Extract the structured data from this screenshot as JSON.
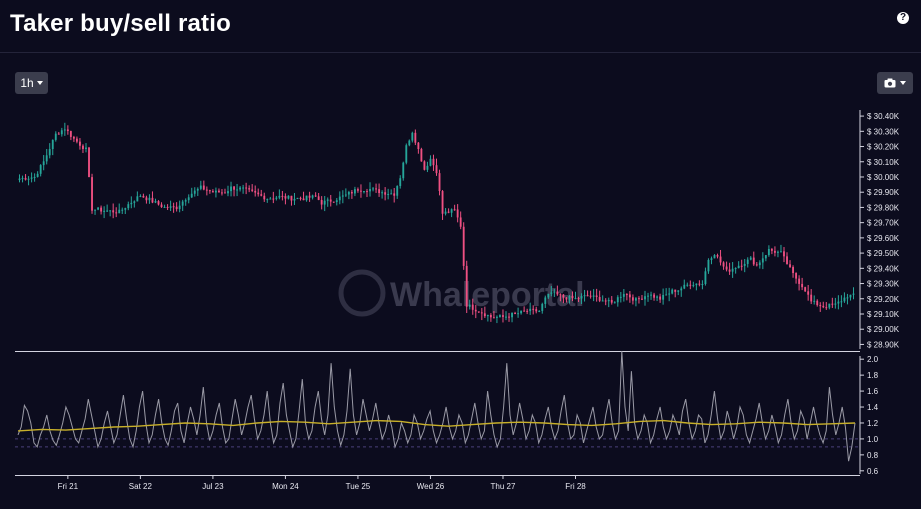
{
  "header": {
    "title": "Taker buy/sell ratio",
    "help_icon": "question-icon"
  },
  "toolbar": {
    "timeframe_label": "1h",
    "camera_icon": "camera-icon"
  },
  "watermark": "Whaleportal",
  "colors": {
    "up": "#26a69a",
    "down": "#ef5082",
    "ratio_line": "#9a9aa6",
    "ma_line": "#c8b02a",
    "ref_line": "#4a3f7a"
  },
  "chart_data": [
    {
      "type": "candlestick",
      "title": "",
      "ylabel": "",
      "y_tick_labels": [
        "$ 30.40K",
        "$ 30.30K",
        "$ 30.20K",
        "$ 30.10K",
        "$ 30.00K",
        "$ 29.90K",
        "$ 29.80K",
        "$ 29.70K",
        "$ 29.60K",
        "$ 29.50K",
        "$ 29.40K",
        "$ 29.30K",
        "$ 29.20K",
        "$ 29.10K",
        "$ 29.00K",
        "$ 28.90K"
      ],
      "y_tick_values": [
        30400,
        30300,
        30200,
        30100,
        30000,
        29900,
        29800,
        29700,
        29600,
        29500,
        29400,
        29300,
        29200,
        29100,
        29000,
        28900
      ],
      "ylim": [
        28870,
        30440
      ],
      "x_tick_labels": [
        "Fri 21",
        "Sat 22",
        "Jul 23",
        "Mon 24",
        "Tue 25",
        "Wed 26",
        "Thu 27",
        "Fri 28"
      ],
      "close_anchors": [
        [
          0,
          29990
        ],
        [
          5,
          30000
        ],
        [
          8,
          30100
        ],
        [
          12,
          30280
        ],
        [
          15,
          30320
        ],
        [
          18,
          30250
        ],
        [
          22,
          30180
        ],
        [
          24,
          29790
        ],
        [
          28,
          29780
        ],
        [
          33,
          29770
        ],
        [
          36,
          29820
        ],
        [
          40,
          29880
        ],
        [
          44,
          29840
        ],
        [
          48,
          29800
        ],
        [
          52,
          29800
        ],
        [
          56,
          29880
        ],
        [
          60,
          29930
        ],
        [
          64,
          29900
        ],
        [
          68,
          29900
        ],
        [
          70,
          29930
        ],
        [
          74,
          29920
        ],
        [
          78,
          29890
        ],
        [
          82,
          29860
        ],
        [
          86,
          29870
        ],
        [
          90,
          29860
        ],
        [
          94,
          29860
        ],
        [
          98,
          29870
        ],
        [
          100,
          29830
        ],
        [
          104,
          29850
        ],
        [
          108,
          29880
        ],
        [
          112,
          29920
        ],
        [
          116,
          29920
        ],
        [
          120,
          29900
        ],
        [
          124,
          29890
        ],
        [
          126,
          30000
        ],
        [
          128,
          30200
        ],
        [
          130,
          30300
        ],
        [
          132,
          30180
        ],
        [
          134,
          30050
        ],
        [
          136,
          30120
        ],
        [
          138,
          30040
        ],
        [
          140,
          29760
        ],
        [
          144,
          29780
        ],
        [
          146,
          29680
        ],
        [
          148,
          29160
        ],
        [
          152,
          29120
        ],
        [
          156,
          29080
        ],
        [
          160,
          29080
        ],
        [
          164,
          29100
        ],
        [
          168,
          29120
        ],
        [
          172,
          29120
        ],
        [
          174,
          29200
        ],
        [
          176,
          29240
        ],
        [
          180,
          29210
        ],
        [
          184,
          29200
        ],
        [
          188,
          29220
        ],
        [
          192,
          29200
        ],
        [
          196,
          29170
        ],
        [
          200,
          29240
        ],
        [
          204,
          29190
        ],
        [
          208,
          29230
        ],
        [
          212,
          29200
        ],
        [
          216,
          29250
        ],
        [
          218,
          29260
        ],
        [
          222,
          29300
        ],
        [
          226,
          29300
        ],
        [
          228,
          29460
        ],
        [
          230,
          29500
        ],
        [
          232,
          29440
        ],
        [
          234,
          29380
        ],
        [
          238,
          29420
        ],
        [
          242,
          29460
        ],
        [
          244,
          29420
        ],
        [
          248,
          29520
        ],
        [
          252,
          29500
        ],
        [
          256,
          29360
        ],
        [
          260,
          29260
        ],
        [
          262,
          29180
        ],
        [
          266,
          29150
        ],
        [
          270,
          29160
        ],
        [
          274,
          29220
        ],
        [
          276,
          29220
        ]
      ]
    },
    {
      "type": "line",
      "title": "",
      "ylabel": "",
      "y_tick_labels": [
        "2.0",
        "1.8",
        "1.6",
        "1.4",
        "1.2",
        "1.0",
        "0.8",
        "0.6"
      ],
      "y_tick_values": [
        2.0,
        1.8,
        1.6,
        1.4,
        1.2,
        1.0,
        0.8,
        0.6
      ],
      "ylim": [
        0.56,
        2.04
      ],
      "reference_lines": [
        1.0,
        0.9
      ],
      "series": [
        {
          "key": "ratio",
          "values": [
            1.05,
            1.15,
            1.42,
            1.35,
            1.2,
            0.95,
            0.9,
            1.05,
            1.15,
            1.3,
            1.1,
            0.98,
            0.92,
            1.05,
            1.2,
            1.4,
            1.3,
            1.15,
            1.0,
            0.95,
            1.1,
            1.25,
            1.5,
            1.3,
            1.1,
            0.9,
            1.0,
            1.2,
            1.35,
            1.15,
            0.95,
            1.05,
            1.3,
            1.55,
            1.25,
            1.0,
            0.9,
            1.1,
            1.4,
            1.6,
            1.2,
            0.95,
            1.05,
            1.3,
            1.5,
            1.2,
            1.0,
            0.92,
            1.1,
            1.35,
            1.45,
            1.1,
            0.95,
            1.2,
            1.4,
            1.25,
            1.05,
            1.3,
            1.65,
            1.2,
            0.98,
            1.1,
            1.3,
            1.45,
            1.15,
            0.95,
            1.0,
            1.25,
            1.5,
            1.3,
            1.05,
            1.2,
            1.4,
            1.55,
            1.25,
            1.0,
            1.1,
            1.3,
            1.6,
            1.2,
            0.95,
            1.05,
            1.45,
            1.7,
            1.3,
            1.1,
            0.9,
            1.0,
            1.35,
            1.75,
            1.2,
            1.0,
            1.1,
            1.4,
            1.6,
            1.25,
            1.05,
            1.3,
            1.95,
            1.4,
            1.1,
            0.92,
            1.05,
            1.35,
            1.88,
            1.3,
            1.05,
            1.2,
            1.5,
            1.3,
            1.1,
            1.25,
            1.45,
            1.2,
            1.0,
            1.1,
            1.3,
            1.15,
            0.9,
            1.0,
            1.2,
            1.1,
            0.95,
            1.05,
            1.3,
            1.2,
            1.0,
            1.1,
            1.25,
            1.35,
            1.1,
            0.95,
            1.05,
            1.2,
            1.4,
            1.15,
            1.0,
            1.1,
            1.3,
            1.2,
            0.95,
            1.05,
            1.25,
            1.45,
            1.2,
            1.0,
            1.1,
            1.6,
            1.3,
            1.05,
            0.9,
            1.0,
            1.4,
            1.95,
            1.3,
            1.05,
            1.2,
            1.45,
            1.25,
            1.0,
            1.1,
            1.3,
            1.2,
            0.95,
            1.05,
            1.25,
            1.4,
            1.15,
            1.0,
            1.1,
            1.35,
            1.55,
            1.2,
            1.0,
            1.05,
            1.3,
            1.2,
            0.95,
            1.1,
            1.25,
            1.4,
            1.15,
            1.0,
            1.05,
            1.3,
            1.5,
            1.2,
            1.0,
            1.1,
            2.1,
            1.4,
            1.1,
            1.85,
            1.2,
            1.0,
            1.1,
            1.3,
            1.2,
            0.95,
            1.05,
            1.25,
            1.4,
            1.15,
            1.0,
            1.1,
            1.3,
            1.2,
            1.05,
            1.35,
            1.5,
            1.2,
            1.0,
            1.1,
            1.3,
            1.25,
            0.95,
            1.05,
            1.3,
            1.6,
            1.25,
            1.0,
            1.1,
            1.35,
            1.2,
            1.0,
            1.15,
            1.4,
            1.3,
            1.05,
            0.95,
            1.1,
            1.25,
            1.45,
            1.2,
            1.0,
            1.1,
            1.3,
            1.15,
            0.95,
            1.05,
            1.3,
            1.5,
            1.2,
            1.0,
            1.1,
            1.35,
            1.25,
            1.0,
            1.2,
            1.4,
            1.2,
            1.05,
            0.95,
            1.1,
            1.65,
            1.3,
            1.05,
            1.2,
            1.4,
            1.15,
            0.72,
            0.9,
            1.2
          ]
        },
        {
          "key": "moving_average",
          "values": [
            1.1,
            1.12,
            1.11,
            1.13,
            1.15,
            1.16,
            1.18,
            1.2,
            1.19,
            1.17,
            1.2,
            1.22,
            1.21,
            1.19,
            1.21,
            1.23,
            1.22,
            1.18,
            1.16,
            1.18,
            1.2,
            1.21,
            1.2,
            1.18,
            1.17,
            1.19,
            1.22,
            1.23,
            1.2,
            1.18,
            1.19,
            1.21,
            1.2,
            1.18,
            1.19,
            1.2
          ]
        }
      ]
    }
  ]
}
